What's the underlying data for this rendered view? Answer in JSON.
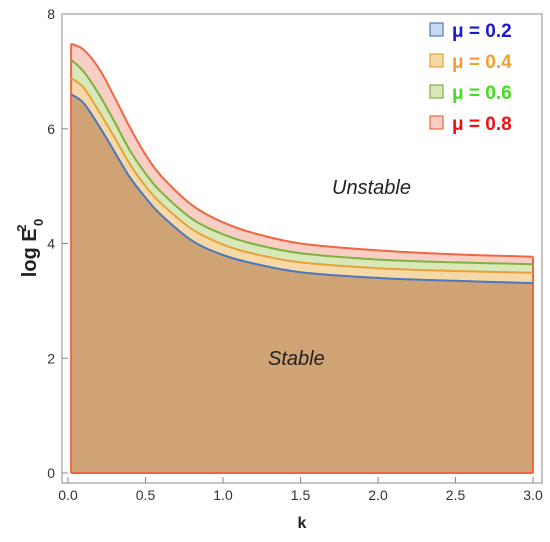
{
  "chart_data": {
    "type": "area",
    "title": "",
    "xlabel": "k",
    "ylabel_main": "log E",
    "ylabel_sup": "2",
    "ylabel_sub": "0",
    "xlim": [
      0,
      3.0
    ],
    "ylim": [
      0,
      8
    ],
    "xticks": [
      "0.0",
      "0.5",
      "1.0",
      "1.5",
      "2.0",
      "2.5",
      "3.0"
    ],
    "yticks": [
      "0",
      "2",
      "4",
      "6",
      "8"
    ],
    "legend_position": "top-right",
    "region_labels": {
      "upper": "Unstable",
      "lower": "Stable"
    },
    "x": [
      0.02,
      0.1,
      0.2,
      0.3,
      0.4,
      0.5,
      0.6,
      0.8,
      1.0,
      1.2,
      1.5,
      2.0,
      2.5,
      3.0
    ],
    "series": [
      {
        "name": "μ = 0.2",
        "color": "#4a78c0",
        "fill": "#c9daf0",
        "text_color": "#1a1acc",
        "values": [
          6.6,
          6.45,
          6.05,
          5.6,
          5.15,
          4.8,
          4.5,
          4.05,
          3.8,
          3.65,
          3.5,
          3.4,
          3.35,
          3.31
        ]
      },
      {
        "name": "μ = 0.4",
        "color": "#e8a13a",
        "fill": "#f6d9a6",
        "text_color": "#f0a030",
        "values": [
          6.88,
          6.72,
          6.3,
          5.85,
          5.38,
          5.0,
          4.7,
          4.25,
          3.98,
          3.82,
          3.67,
          3.57,
          3.52,
          3.49
        ]
      },
      {
        "name": "μ = 0.6",
        "color": "#7fb040",
        "fill": "#d8e8b8",
        "text_color": "#44dd22",
        "values": [
          7.2,
          7.0,
          6.6,
          6.12,
          5.62,
          5.22,
          4.9,
          4.43,
          4.16,
          3.99,
          3.83,
          3.72,
          3.67,
          3.64
        ]
      },
      {
        "name": "μ = 0.8",
        "color": "#ee6644",
        "fill": "#f8cfc4",
        "text_color": "#ee1111",
        "values": [
          7.48,
          7.38,
          7.05,
          6.55,
          6.02,
          5.55,
          5.18,
          4.67,
          4.37,
          4.18,
          4.0,
          3.88,
          3.81,
          3.77
        ]
      }
    ],
    "stable_fill": "#cfa374"
  }
}
